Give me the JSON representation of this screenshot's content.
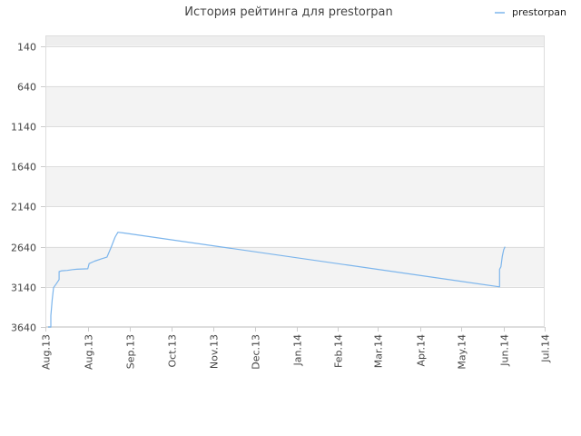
{
  "chart_data": {
    "type": "line",
    "title": "История рейтинга для prestorpan",
    "xlabel": "",
    "ylabel": "",
    "x_tick_labels": [
      "Aug.13",
      "Aug.13",
      "Sep.13",
      "Oct.13",
      "Nov.13",
      "Dec.13",
      "Jan.14",
      "Feb.14",
      "Mar.14",
      "Apr.14",
      "May.14",
      "Jun.14",
      "Jul.14"
    ],
    "x_tick_dates": [
      "2013-07-29",
      "2013-08-29",
      "2013-09-29",
      "2013-10-29",
      "2013-11-29",
      "2013-12-29",
      "2014-01-29",
      "2014-02-28",
      "2014-03-29",
      "2014-04-29",
      "2014-05-29",
      "2014-06-29",
      "2014-07-29"
    ],
    "y_ticks": [
      140,
      640,
      1140,
      1640,
      2140,
      2640,
      3140,
      3640
    ],
    "ylim": [
      3640,
      20
    ],
    "y_inverted": true,
    "xlim": [
      "2013-07-29",
      "2014-07-29"
    ],
    "grid": true,
    "legend_position": "top-right",
    "color": "#7cb5ec",
    "series": [
      {
        "name": "prestorpan",
        "points": [
          {
            "x": "2013-07-31",
            "y": 3640
          },
          {
            "x": "2013-08-02",
            "y": 3640
          },
          {
            "x": "2013-08-02",
            "y": 3500
          },
          {
            "x": "2013-08-03",
            "y": 3300
          },
          {
            "x": "2013-08-04",
            "y": 3150
          },
          {
            "x": "2013-08-06",
            "y": 3100
          },
          {
            "x": "2013-08-08",
            "y": 3050
          },
          {
            "x": "2013-08-08",
            "y": 2950
          },
          {
            "x": "2013-08-10",
            "y": 2940
          },
          {
            "x": "2013-08-14",
            "y": 2935
          },
          {
            "x": "2013-08-18",
            "y": 2925
          },
          {
            "x": "2013-08-21",
            "y": 2920
          },
          {
            "x": "2013-08-29",
            "y": 2915
          },
          {
            "x": "2013-08-30",
            "y": 2850
          },
          {
            "x": "2013-09-03",
            "y": 2820
          },
          {
            "x": "2013-09-08",
            "y": 2790
          },
          {
            "x": "2013-09-12",
            "y": 2770
          },
          {
            "x": "2013-09-15",
            "y": 2650
          },
          {
            "x": "2013-09-18",
            "y": 2520
          },
          {
            "x": "2013-09-20",
            "y": 2460
          },
          {
            "x": "2013-09-25",
            "y": 2470
          },
          {
            "x": "2014-06-26",
            "y": 3140
          },
          {
            "x": "2014-06-26",
            "y": 3100
          },
          {
            "x": "2014-06-26",
            "y": 2920
          },
          {
            "x": "2014-06-27",
            "y": 2890
          },
          {
            "x": "2014-06-28",
            "y": 2760
          },
          {
            "x": "2014-06-29",
            "y": 2680
          },
          {
            "x": "2014-06-30",
            "y": 2640
          }
        ]
      }
    ]
  }
}
